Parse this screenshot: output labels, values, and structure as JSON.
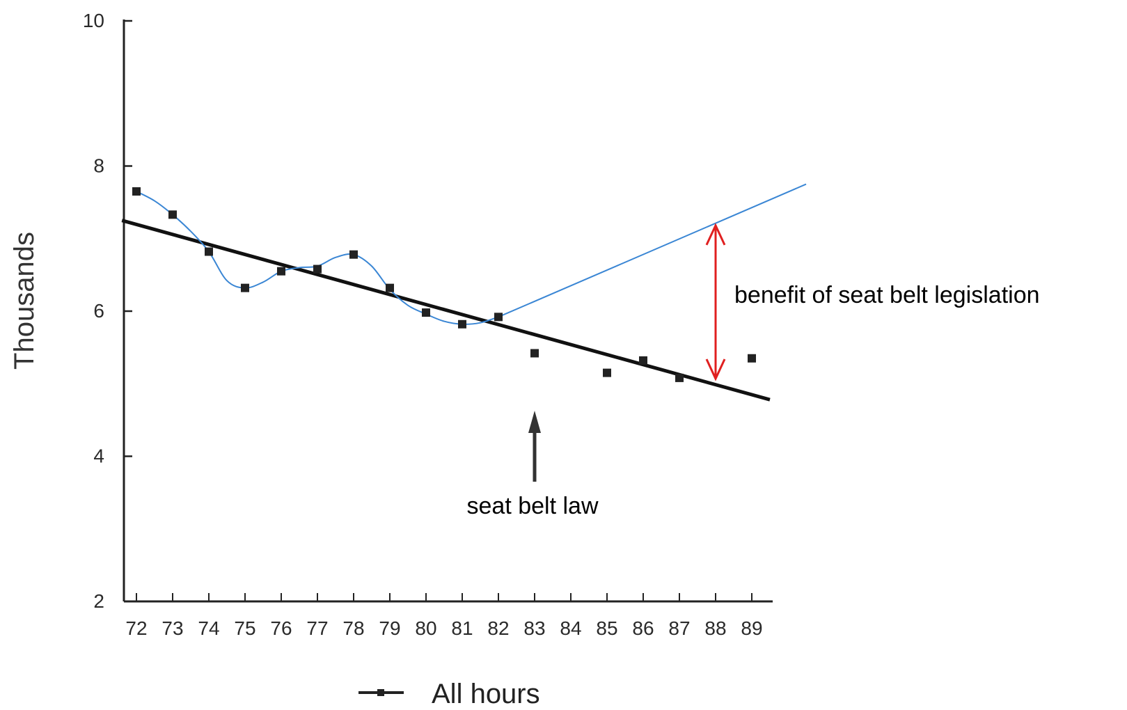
{
  "chart_data": {
    "type": "line",
    "title": "",
    "xlabel": "",
    "ylabel": "Thousands",
    "categories": [
      "72",
      "73",
      "74",
      "75",
      "76",
      "77",
      "78",
      "79",
      "80",
      "81",
      "82",
      "83",
      "84",
      "85",
      "86",
      "87",
      "88",
      "89"
    ],
    "ylim": [
      2,
      10
    ],
    "yticks": [
      2,
      4,
      6,
      8,
      10
    ],
    "grid": false,
    "legend_position": "bottom",
    "series": [
      {
        "name": "All hours",
        "marker": "square",
        "values": [
          7.65,
          7.33,
          6.82,
          6.32,
          6.55,
          6.58,
          6.78,
          6.32,
          5.98,
          5.82,
          5.92,
          5.42,
          null,
          5.15,
          5.32,
          5.08,
          null,
          5.35
        ]
      }
    ],
    "trend_line": {
      "x": [
        71.6,
        89.5
      ],
      "y": [
        7.25,
        4.78
      ]
    },
    "smooth_curve": {
      "x": [
        72,
        72.5,
        73,
        73.5,
        74,
        74.5,
        75,
        75.5,
        76,
        76.5,
        77,
        77.5,
        78,
        78.5,
        79,
        79.5,
        80,
        80.5,
        81,
        81.5,
        82
      ],
      "y": [
        7.65,
        7.52,
        7.33,
        7.1,
        6.82,
        6.42,
        6.32,
        6.4,
        6.55,
        6.6,
        6.62,
        6.74,
        6.78,
        6.62,
        6.3,
        6.08,
        5.96,
        5.86,
        5.82,
        5.84,
        5.92
      ]
    },
    "counterfactual_line": {
      "x": [
        82,
        90.5
      ],
      "y": [
        5.92,
        7.75
      ]
    },
    "benefit_span": {
      "x": 88,
      "y_from": 5.05,
      "y_to": 7.2
    },
    "law_marker_x": 83,
    "annotations": {
      "benefit": "benefit of seat belt legislation",
      "law": "seat belt law"
    },
    "colors": {
      "axis": "#222222",
      "points": "#222222",
      "trend": "#111111",
      "smooth": "#3a86d4",
      "benefit_arrow": "#e02020",
      "law_arrow": "#333333"
    }
  }
}
